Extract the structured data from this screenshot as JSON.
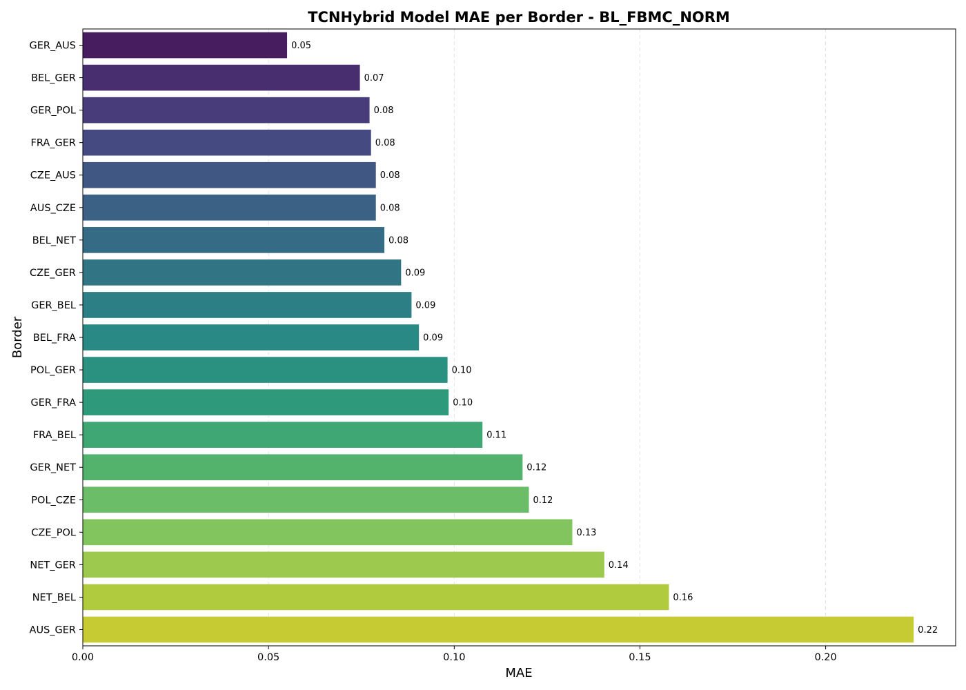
{
  "chart_data": {
    "type": "bar",
    "orientation": "horizontal",
    "title": "TCNHybrid Model MAE per Border - BL_FBMC_NORM",
    "xlabel": "MAE",
    "ylabel": "Border",
    "xlim": [
      0,
      0.235
    ],
    "xticks": [
      0.0,
      0.05,
      0.1,
      0.15,
      0.2
    ],
    "xtick_labels": [
      "0.00",
      "0.05",
      "0.10",
      "0.15",
      "0.20"
    ],
    "grid": "x-axis dashed",
    "categories": [
      "GER_AUS",
      "BEL_GER",
      "GER_POL",
      "FRA_GER",
      "CZE_AUS",
      "AUS_CZE",
      "BEL_NET",
      "CZE_GER",
      "GER_BEL",
      "BEL_FRA",
      "POL_GER",
      "GER_FRA",
      "FRA_BEL",
      "GER_NET",
      "POL_CZE",
      "CZE_POL",
      "NET_GER",
      "NET_BEL",
      "AUS_GER"
    ],
    "values": [
      0.055,
      0.0746,
      0.0772,
      0.0776,
      0.0789,
      0.0789,
      0.0812,
      0.0857,
      0.0885,
      0.0905,
      0.0982,
      0.0985,
      0.1076,
      0.1184,
      0.1201,
      0.1318,
      0.1404,
      0.1578,
      0.2237
    ],
    "data_labels": [
      "0.05",
      "0.07",
      "0.08",
      "0.08",
      "0.08",
      "0.08",
      "0.08",
      "0.09",
      "0.09",
      "0.09",
      "0.10",
      "0.10",
      "0.11",
      "0.12",
      "0.12",
      "0.13",
      "0.14",
      "0.16",
      "0.22"
    ],
    "colors": [
      "#471d5f",
      "#482e6e",
      "#483d7a",
      "#454a80",
      "#405683",
      "#3b6184",
      "#366b85",
      "#317585",
      "#2c7f85",
      "#288985",
      "#2a9180",
      "#2f9a7b",
      "#3ea774",
      "#53b36c",
      "#6bbd67",
      "#82c45e",
      "#9cc94e",
      "#b0cc3e",
      "#c6cb33"
    ]
  }
}
